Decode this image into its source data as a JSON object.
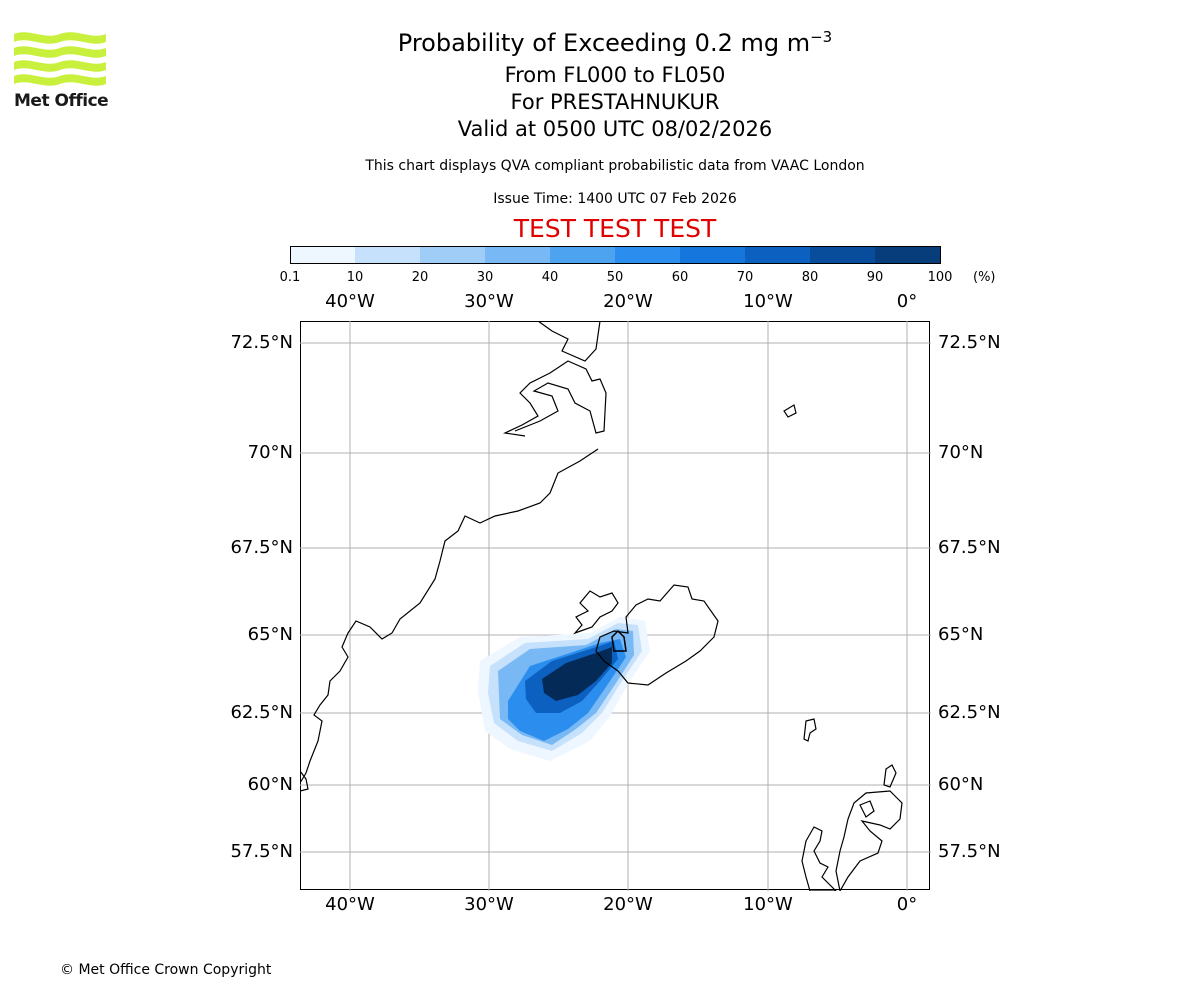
{
  "header": {
    "title_main": "Probability of Exceeding 0.2 mg m",
    "title_superscript": "−3",
    "levels": "From FL000 to FL050",
    "volcano": "For PRESTAHNUKUR",
    "valid": "Valid at 0500 UTC 08/02/2026",
    "description": "This chart displays QVA compliant probabilistic data from VAAC London",
    "issue_time": "Issue Time: 1400 UTC 07 Feb 2026",
    "test_banner": "TEST TEST TEST"
  },
  "logo": {
    "text": "Met Office",
    "icon": "met-office-wave-logo",
    "color": "#c8f03c"
  },
  "colorbar": {
    "ticks": [
      "0.1",
      "10",
      "20",
      "30",
      "40",
      "50",
      "60",
      "70",
      "80",
      "90",
      "100"
    ],
    "units": "(%)",
    "colors": [
      "#eef6ff",
      "#c6e1fb",
      "#a0cdf7",
      "#78b8f4",
      "#4ea3f0",
      "#2b8ded",
      "#1576de",
      "#0c61c0",
      "#084d9c",
      "#063d7a",
      "#042b58"
    ]
  },
  "map": {
    "lon_labels": [
      "40°W",
      "30°W",
      "20°W",
      "10°W",
      "0°"
    ],
    "lat_labels": [
      "72.5°N",
      "70°N",
      "67.5°N",
      "65°N",
      "62.5°N",
      "60°N",
      "57.5°N"
    ],
    "gridlines": true
  },
  "footer": {
    "copyright": "© Met Office Crown Copyright"
  }
}
